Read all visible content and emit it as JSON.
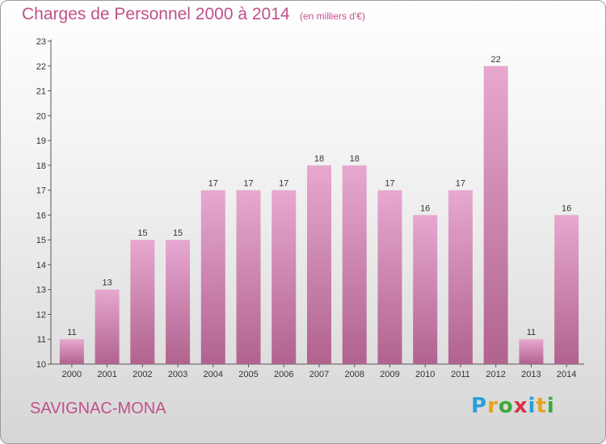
{
  "title": "Charges de Personnel 2000 à 2014",
  "subtitle": "(en milliers d'€)",
  "commune": "SAVIGNAC-MONA",
  "logo": {
    "letters": [
      "P",
      "r",
      "o",
      "x",
      "i",
      "t",
      "i"
    ],
    "colors": [
      "#2aa0d8",
      "#e3a41e",
      "#3ea83c",
      "#d8324a",
      "#2aa0d8",
      "#e3a41e",
      "#3ea83c"
    ]
  },
  "chart_data": {
    "type": "bar",
    "title": "Charges de Personnel 2000 à 2014",
    "subtitle": "(en milliers d'€)",
    "categories": [
      "2000",
      "2001",
      "2002",
      "2003",
      "2004",
      "2005",
      "2006",
      "2007",
      "2008",
      "2009",
      "2010",
      "2011",
      "2012",
      "2013",
      "2014"
    ],
    "values": [
      11,
      13,
      15,
      15,
      17,
      17,
      17,
      18,
      18,
      17,
      16,
      17,
      22,
      11,
      16
    ],
    "data_labels": [
      "11",
      "13",
      "15",
      "15",
      "17",
      "17",
      "17",
      "18",
      "18",
      "17",
      "16",
      "17",
      "22",
      "11",
      "16"
    ],
    "yticks": [
      "10",
      "11",
      "12",
      "13",
      "14",
      "15",
      "16",
      "17",
      "18",
      "19",
      "20",
      "21",
      "22",
      "23"
    ],
    "ylim": [
      10,
      23
    ],
    "grid": false,
    "bar_color_top": "#e7a8d0",
    "bar_color_bottom": "#b0638e"
  }
}
